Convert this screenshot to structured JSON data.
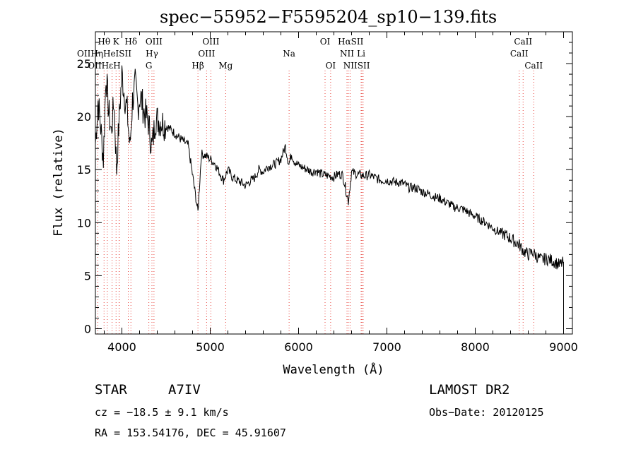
{
  "chart_data": {
    "type": "line",
    "title": "spec−55952−F5595204_sp10−139.fits",
    "xlabel": "Wavelength (Å)",
    "ylabel": "Flux (relative)",
    "xlim": [
      3700,
      9100
    ],
    "ylim": [
      -0.5,
      28
    ],
    "grid": false,
    "x_ticks": [
      4000,
      5000,
      6000,
      7000,
      8000,
      9000
    ],
    "x_tick_labels": [
      "4000",
      "5000",
      "6000",
      "7000",
      "8000",
      "9000"
    ],
    "y_ticks": [
      0,
      5,
      10,
      15,
      20,
      25
    ],
    "y_tick_labels": [
      "0",
      "5",
      "10",
      "15",
      "20",
      "25"
    ],
    "series": [
      {
        "values_description_free": true,
        "x": [
          3700,
          3730,
          3760,
          3790,
          3820,
          3850,
          3880,
          3910,
          3940,
          3970,
          4000,
          4030,
          4060,
          4090,
          4120,
          4150,
          4180,
          4210,
          4250,
          4300,
          4340,
          4380,
          4450,
          4550,
          4650,
          4750,
          4861,
          4900,
          4950,
          5000,
          5050,
          5100,
          5150,
          5200,
          5250,
          5300,
          5350,
          5400,
          5450,
          5500,
          5550,
          5600,
          5650,
          5700,
          5750,
          5800,
          5850,
          5890,
          5920,
          5950,
          6000,
          6050,
          6100,
          6150,
          6200,
          6250,
          6300,
          6350,
          6400,
          6450,
          6500,
          6563,
          6600,
          6650,
          6700,
          6750,
          6800,
          6850,
          6900,
          6950,
          7000,
          7050,
          7100,
          7150,
          7200,
          7250,
          7300,
          7350,
          7400,
          7450,
          7500,
          7550,
          7600,
          7650,
          7700,
          7750,
          7800,
          7850,
          7900,
          7950,
          8000,
          8050,
          8100,
          8150,
          8200,
          8250,
          8300,
          8350,
          8400,
          8450,
          8500,
          8550,
          8600,
          8650,
          8700,
          8750,
          8800,
          8850,
          8900,
          8950,
          8990,
          9000
        ],
        "y": [
          17.5,
          21.5,
          19.0,
          16.0,
          24.0,
          20.5,
          18.5,
          21.5,
          15.0,
          20.0,
          24.0,
          22.0,
          20.5,
          17.0,
          21.5,
          23.0,
          21.0,
          22.0,
          20.5,
          19.5,
          17.0,
          19.8,
          19.5,
          18.8,
          18.0,
          17.3,
          11.0,
          16.5,
          16.3,
          16.0,
          15.6,
          14.8,
          14.0,
          15.0,
          14.3,
          14.0,
          13.8,
          13.5,
          13.9,
          14.2,
          15.0,
          14.8,
          15.3,
          15.4,
          15.6,
          16.0,
          17.2,
          15.5,
          16.5,
          15.8,
          15.4,
          15.2,
          15.0,
          14.8,
          14.9,
          14.6,
          14.5,
          14.4,
          14.3,
          14.6,
          14.5,
          12.0,
          14.8,
          14.6,
          14.5,
          14.4,
          14.5,
          14.3,
          14.1,
          14.0,
          14.0,
          13.9,
          13.8,
          13.8,
          13.6,
          13.3,
          13.3,
          13.2,
          12.9,
          12.8,
          12.6,
          12.4,
          12.3,
          12.0,
          11.8,
          11.5,
          11.4,
          11.3,
          11.1,
          10.8,
          10.6,
          10.3,
          10.1,
          9.8,
          9.5,
          9.2,
          9.0,
          8.8,
          8.5,
          8.2,
          7.9,
          7.3,
          7.0,
          7.2,
          6.8,
          6.5,
          6.6,
          6.5,
          6.3,
          6.0,
          6.2,
          6.3
        ]
      }
    ],
    "lines": [
      {
        "label": "Hθ",
        "x": 3798,
        "row": 0
      },
      {
        "label": "K",
        "x": 3934,
        "row": 0
      },
      {
        "label": "Hδ",
        "x": 4102,
        "row": 0
      },
      {
        "label": "OIII",
        "x": 4363,
        "row": 0
      },
      {
        "label": "OIII",
        "x": 5007,
        "row": 0
      },
      {
        "label": "OI",
        "x": 6300,
        "row": 0
      },
      {
        "label": "Hα",
        "x": 6563,
        "row": 0
      },
      {
        "label": "SII",
        "x": 6717,
        "row": 0
      },
      {
        "label": "CaII",
        "x": 8542,
        "row": 0
      },
      {
        "label": "OII",
        "x": 3727,
        "row": 1
      },
      {
        "label": "Hη",
        "x": 3835,
        "row": 1
      },
      {
        "label": "HeI",
        "x": 3889,
        "row": 1
      },
      {
        "label": "SII",
        "x": 4072,
        "row": 1
      },
      {
        "label": "Hγ",
        "x": 4340,
        "row": 1
      },
      {
        "label": "OIII",
        "x": 4959,
        "row": 1
      },
      {
        "label": "Na",
        "x": 5893,
        "row": 1
      },
      {
        "label": "NII",
        "x": 6548,
        "row": 1
      },
      {
        "label": "Li",
        "x": 6708,
        "row": 1
      },
      {
        "label": "CaII",
        "x": 8498,
        "row": 1
      },
      {
        "label": "OII",
        "x": 3727,
        "row": 2
      },
      {
        "label": "Hε",
        "x": 3970,
        "row": 2
      },
      {
        "label": "H",
        "x": 3968,
        "row": 2
      },
      {
        "label": "G",
        "x": 4305,
        "row": 2
      },
      {
        "label": "Hβ",
        "x": 4861,
        "row": 2
      },
      {
        "label": "Mg",
        "x": 5175,
        "row": 2
      },
      {
        "label": "OI",
        "x": 6363,
        "row": 2
      },
      {
        "label": "NII",
        "x": 6583,
        "row": 2
      },
      {
        "label": "SII",
        "x": 6731,
        "row": 2
      },
      {
        "label": "CaII",
        "x": 8662,
        "row": 2
      }
    ],
    "line_labels_text": {
      "row0": [
        "Hθ",
        "K",
        "Hδ",
        "OIII",
        "OIII",
        "OI",
        "HαSII",
        "CaII"
      ],
      "row1": [
        "OIIHηHeISII",
        "Hγ",
        "OIII",
        "Na",
        "NII",
        "Li",
        "CaII"
      ],
      "row2": [
        "OIIHεH",
        "G",
        "Hβ",
        "Mg",
        "OI",
        "NIISII",
        "CaII"
      ]
    }
  },
  "info": {
    "object_type": "STAR",
    "subclass": "A7IV",
    "survey": "LAMOST DR2",
    "cz": "cz = −18.5 ± 9.1 km/s",
    "obs_date": "Obs−Date: 20120125",
    "coords": "RA = 153.54176, DEC =  45.91607"
  },
  "colors": {
    "spectrum": "#000000",
    "line_markers": "#e8413a",
    "axes": "#000000"
  }
}
